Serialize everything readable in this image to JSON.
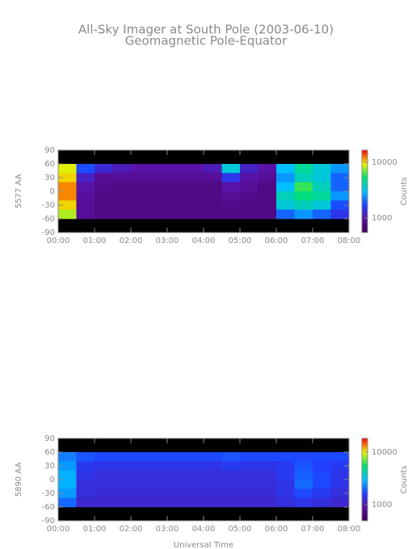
{
  "title": "All-Sky Imager at South Pole (2003-06-10)",
  "subtitle": "Geomagnetic Pole-Equator",
  "chart_data": [
    {
      "type": "heatmap",
      "ylabel": "5577 AA",
      "clabel": "Counts",
      "log_color": true,
      "colors": [
        "#3a0050",
        "#5a10a0",
        "#1f40ff",
        "#00c0ff",
        "#00e070",
        "#f0f000",
        "#ff0000"
      ],
      "xlim": [
        0,
        8
      ],
      "xticks": [
        {
          "value": 0,
          "label": "00:00"
        },
        {
          "value": 1,
          "label": "01:00"
        },
        {
          "value": 2,
          "label": "02:00"
        },
        {
          "value": 3,
          "label": "03:00"
        },
        {
          "value": 4,
          "label": "04:00"
        },
        {
          "value": 5,
          "label": "05:00"
        },
        {
          "value": 6,
          "label": "06:00"
        },
        {
          "value": 7,
          "label": "07:00"
        },
        {
          "value": 8,
          "label": "08:00"
        }
      ],
      "ylim": [
        -90,
        90
      ],
      "yticks": [
        90,
        60,
        30,
        0,
        -30,
        -60,
        -90
      ],
      "clim": [
        550,
        16500
      ],
      "cticks": [
        1000,
        10000
      ],
      "xbins": [
        0,
        0.5,
        1,
        1.5,
        2,
        2.5,
        3,
        3.5,
        4,
        4.5,
        5,
        5.5,
        6,
        6.5,
        7,
        7.5,
        8
      ],
      "ybins": [
        60,
        40,
        20,
        0,
        -20,
        -40,
        -60
      ],
      "values": [
        [
          9000,
          1800,
          1300,
          1100,
          1000,
          1000,
          1000,
          1000,
          1100,
          3500,
          1200,
          1000,
          3000,
          4500,
          3500,
          2500
        ],
        [
          10000,
          1200,
          900,
          900,
          900,
          900,
          900,
          900,
          900,
          1500,
          1000,
          900,
          2500,
          4000,
          3500,
          2000
        ],
        [
          12000,
          1000,
          850,
          800,
          800,
          800,
          800,
          800,
          800,
          1000,
          900,
          800,
          3000,
          6000,
          4000,
          2000
        ],
        [
          12000,
          950,
          800,
          800,
          800,
          800,
          800,
          800,
          800,
          900,
          850,
          800,
          4000,
          5000,
          4500,
          2500
        ],
        [
          10000,
          900,
          800,
          800,
          800,
          800,
          800,
          800,
          800,
          850,
          800,
          800,
          3500,
          4000,
          3500,
          1800
        ],
        [
          8000,
          900,
          800,
          800,
          800,
          800,
          800,
          800,
          800,
          800,
          800,
          800,
          2000,
          2500,
          2000,
          1500
        ]
      ]
    },
    {
      "type": "heatmap",
      "ylabel": "5890 AA",
      "clabel": "Counts",
      "xlabel": "Universal Time",
      "log_color": true,
      "colors": [
        "#3a0050",
        "#5a10a0",
        "#1f40ff",
        "#00c0ff",
        "#00e070",
        "#f0f000",
        "#ff0000"
      ],
      "xlim": [
        0,
        8
      ],
      "xticks": [
        {
          "value": 0,
          "label": "00:00"
        },
        {
          "value": 1,
          "label": "01:00"
        },
        {
          "value": 2,
          "label": "02:00"
        },
        {
          "value": 3,
          "label": "03:00"
        },
        {
          "value": 4,
          "label": "04:00"
        },
        {
          "value": 5,
          "label": "05:00"
        },
        {
          "value": 6,
          "label": "06:00"
        },
        {
          "value": 7,
          "label": "07:00"
        },
        {
          "value": 8,
          "label": "08:00"
        }
      ],
      "ylim": [
        -90,
        90
      ],
      "yticks": [
        90,
        60,
        30,
        0,
        -30,
        -60,
        -90
      ],
      "clim": [
        490,
        18200
      ],
      "cticks": [
        1000,
        10000
      ],
      "xbins": [
        0,
        0.5,
        1,
        1.5,
        2,
        2.5,
        3,
        3.5,
        4,
        4.5,
        5,
        5.5,
        6,
        6.5,
        7,
        7.5,
        8
      ],
      "ybins": [
        60,
        40,
        20,
        0,
        -20,
        -40,
        -60
      ],
      "values": [
        [
          2200,
          1800,
          1700,
          1700,
          1700,
          1700,
          1700,
          1700,
          1700,
          1800,
          1700,
          1700,
          1700,
          1700,
          1700,
          1700
        ],
        [
          2500,
          1500,
          1400,
          1400,
          1400,
          1400,
          1400,
          1400,
          1400,
          1500,
          1400,
          1400,
          1500,
          1800,
          1600,
          1500
        ],
        [
          2800,
          1400,
          1300,
          1300,
          1300,
          1300,
          1300,
          1300,
          1300,
          1300,
          1300,
          1300,
          1500,
          1900,
          1700,
          1400
        ],
        [
          2800,
          1300,
          1300,
          1300,
          1300,
          1300,
          1300,
          1300,
          1300,
          1300,
          1300,
          1300,
          1400,
          2000,
          1700,
          1400
        ],
        [
          2500,
          1300,
          1250,
          1250,
          1250,
          1250,
          1250,
          1250,
          1250,
          1250,
          1250,
          1250,
          1400,
          1700,
          1500,
          1300
        ],
        [
          2000,
          1200,
          1200,
          1200,
          1200,
          1200,
          1200,
          1200,
          1200,
          1200,
          1200,
          1200,
          1300,
          1400,
          1300,
          1200
        ]
      ]
    }
  ]
}
